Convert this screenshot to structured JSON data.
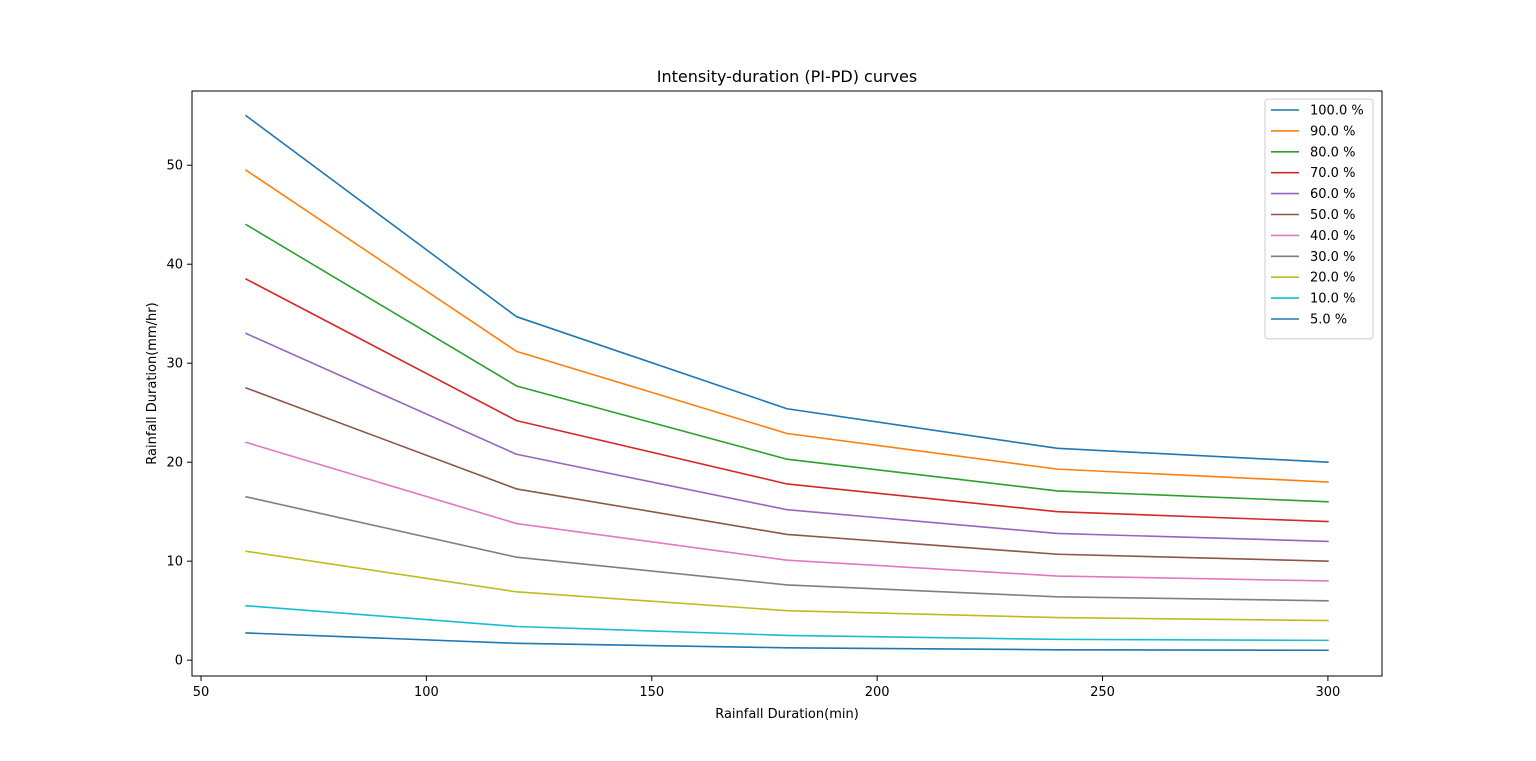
{
  "chart_data": {
    "type": "line",
    "title": "Intensity-duration (PI-PD) curves",
    "xlabel": "Rainfall Duration(min)",
    "ylabel": "Rainfall Duration(mm/hr)",
    "xlim": [
      48,
      312
    ],
    "ylim": [
      -1.6,
      57.5
    ],
    "xticks": [
      50,
      100,
      150,
      200,
      250,
      300
    ],
    "yticks": [
      0,
      10,
      20,
      30,
      40,
      50
    ],
    "grid": false,
    "legend_position": "top-right",
    "x": [
      60,
      120,
      180,
      240,
      300
    ],
    "series": [
      {
        "name": "100.0 %",
        "color": "#1f77b4",
        "values": [
          55.0,
          34.7,
          25.4,
          21.4,
          20.0
        ]
      },
      {
        "name": "90.0 %",
        "color": "#ff7f0e",
        "values": [
          49.5,
          31.2,
          22.9,
          19.3,
          18.0
        ]
      },
      {
        "name": "80.0 %",
        "color": "#2ca02c",
        "values": [
          44.0,
          27.7,
          20.3,
          17.1,
          16.0
        ]
      },
      {
        "name": "70.0 %",
        "color": "#d62728",
        "values": [
          38.5,
          24.2,
          17.8,
          15.0,
          14.0
        ]
      },
      {
        "name": "60.0 %",
        "color": "#9467bd",
        "values": [
          33.0,
          20.8,
          15.2,
          12.8,
          12.0
        ]
      },
      {
        "name": "50.0 %",
        "color": "#8c564b",
        "values": [
          27.5,
          17.3,
          12.7,
          10.7,
          10.0
        ]
      },
      {
        "name": "40.0 %",
        "color": "#e377c2",
        "values": [
          22.0,
          13.8,
          10.1,
          8.5,
          8.0
        ]
      },
      {
        "name": "30.0 %",
        "color": "#7f7f7f",
        "values": [
          16.5,
          10.4,
          7.6,
          6.4,
          6.0
        ]
      },
      {
        "name": "20.0 %",
        "color": "#bcbd22",
        "values": [
          11.0,
          6.9,
          5.0,
          4.3,
          4.0
        ]
      },
      {
        "name": "10.0 %",
        "color": "#17becf",
        "values": [
          5.5,
          3.4,
          2.5,
          2.1,
          2.0
        ]
      },
      {
        "name": "5.0 %",
        "color": "#1f77b4",
        "values": [
          2.75,
          1.7,
          1.25,
          1.05,
          1.0
        ]
      }
    ]
  }
}
